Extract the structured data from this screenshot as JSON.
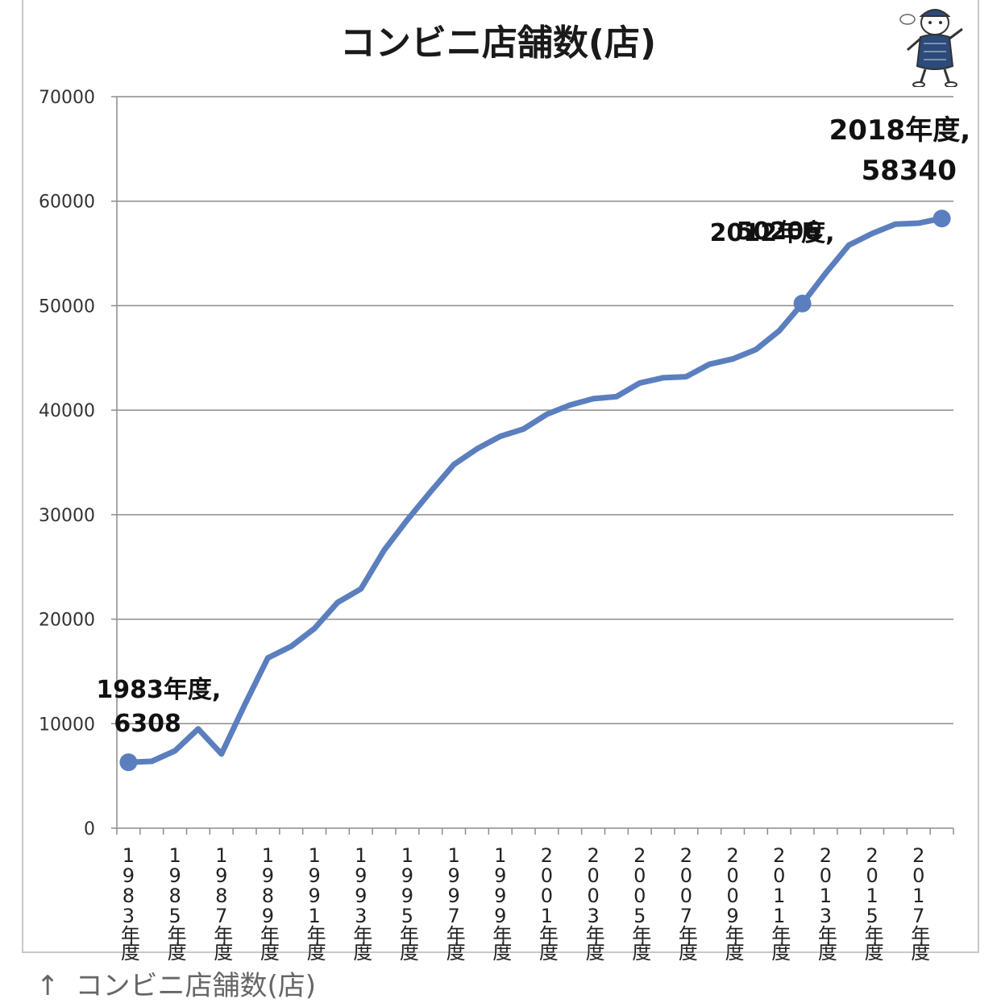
{
  "caption": {
    "arrow": "↑",
    "text": "コンビニ店舗数(店)"
  },
  "chart_data": {
    "type": "line",
    "title": "コンビニ店舗数(店)",
    "xlabel": "",
    "ylabel": "",
    "ylim": [
      0,
      70000
    ],
    "yticks": [
      0,
      10000,
      20000,
      30000,
      40000,
      50000,
      60000,
      70000
    ],
    "ytick_labels": [
      "0",
      "10000",
      "20000",
      "30000",
      "40000",
      "50000",
      "60000",
      "70000"
    ],
    "grid": true,
    "legend": "none",
    "line_color": "#5b7fbe",
    "categories": [
      "1983年度",
      "1984年度",
      "1985年度",
      "1986年度",
      "1987年度",
      "1988年度",
      "1989年度",
      "1990年度",
      "1991年度",
      "1992年度",
      "1993年度",
      "1994年度",
      "1995年度",
      "1996年度",
      "1997年度",
      "1998年度",
      "1999年度",
      "2000年度",
      "2001年度",
      "2002年度",
      "2003年度",
      "2004年度",
      "2005年度",
      "2006年度",
      "2007年度",
      "2008年度",
      "2009年度",
      "2010年度",
      "2011年度",
      "2012年度",
      "2013年度",
      "2014年度",
      "2015年度",
      "2016年度",
      "2017年度",
      "2018年度"
    ],
    "tick_labels": [
      "1983年度",
      "1985年度",
      "1987年度",
      "1989年度",
      "1991年度",
      "1993年度",
      "1995年度",
      "1997年度",
      "1999年度",
      "2001年度",
      "2003年度",
      "2005年度",
      "2007年度",
      "2009年度",
      "2011年度",
      "2013年度",
      "2015年度",
      "2017年度"
    ],
    "values": [
      6308,
      6400,
      7400,
      9500,
      7100,
      11800,
      16300,
      17400,
      19100,
      21600,
      22900,
      26600,
      29500,
      32200,
      34800,
      36300,
      37500,
      38200,
      39600,
      40500,
      41100,
      41300,
      42600,
      43100,
      43200,
      44400,
      44900,
      45800,
      47600,
      50206,
      53100,
      55800,
      56900,
      57800,
      57900,
      58340
    ],
    "annotations": [
      {
        "index": 0,
        "line1": "1983年度,",
        "line2": "6308"
      },
      {
        "index": 29,
        "line1": "2012年度,",
        "line2": "50206"
      },
      {
        "index": 35,
        "line1": "2018年度,",
        "line2": "58340"
      }
    ]
  }
}
